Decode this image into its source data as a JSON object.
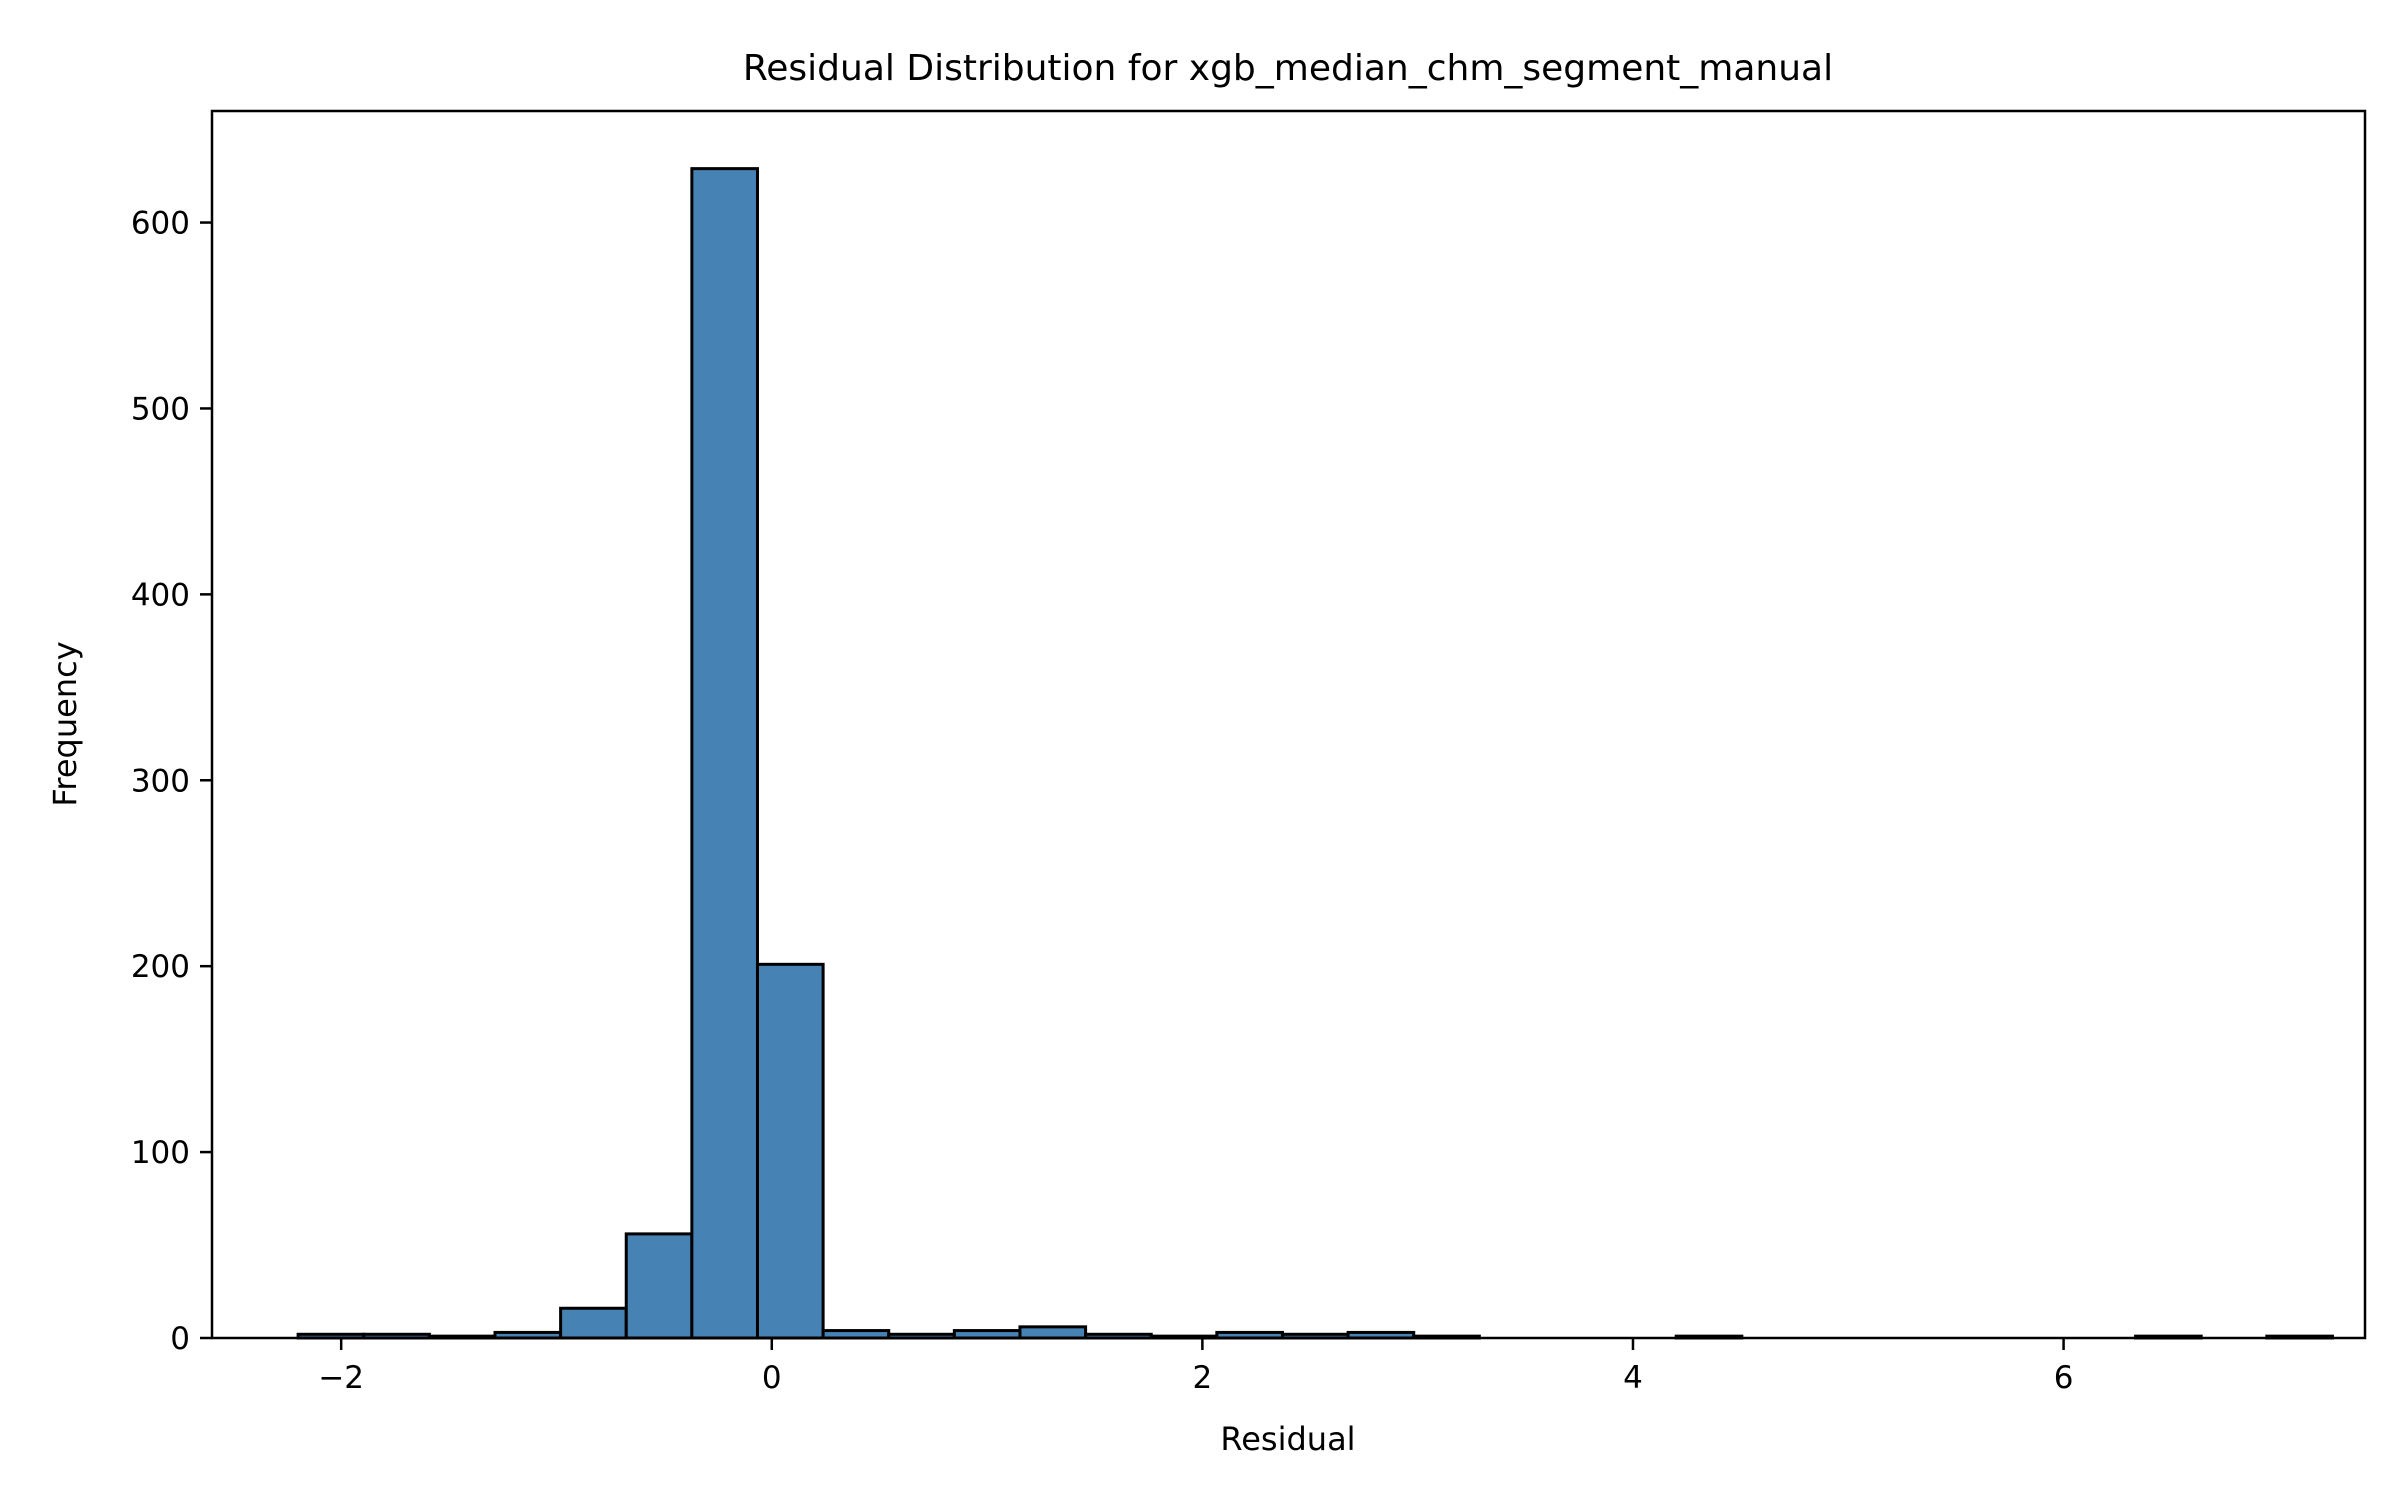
{
  "chart_data": {
    "type": "bar",
    "title": "Residual Distribution for xgb_median_chm_segment_manual",
    "xlabel": "Residual",
    "ylabel": "Frequency",
    "xlim": [
      -2.6,
      7.4
    ],
    "ylim": [
      0,
      660
    ],
    "grid": false,
    "bar_color": "#4682b4",
    "edge_color": "#000000",
    "xticks": [
      -2,
      0,
      2,
      4,
      6
    ],
    "xtick_labels": [
      "−2",
      "0",
      "2",
      "4",
      "6"
    ],
    "yticks": [
      0,
      100,
      200,
      300,
      400,
      500,
      600
    ],
    "ytick_labels": [
      "0",
      "100",
      "200",
      "300",
      "400",
      "500",
      "600"
    ],
    "bin_start": -2.2,
    "bin_width": 0.3048,
    "values": [
      2,
      2,
      1,
      3,
      16,
      56,
      629,
      201,
      4,
      2,
      4,
      6,
      2,
      1,
      3,
      2,
      3,
      1,
      0,
      0,
      0,
      1,
      0,
      0,
      0,
      0,
      0,
      0,
      1,
      0,
      1
    ]
  }
}
